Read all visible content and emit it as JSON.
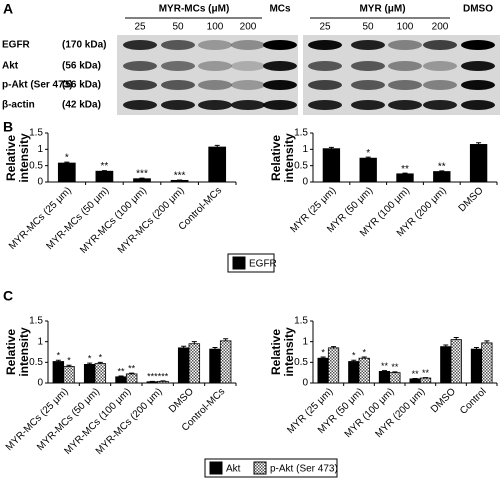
{
  "panel_labels": [
    "A",
    "B",
    "C"
  ],
  "panel_a": {
    "groups": [
      {
        "title": "MYR-MCs (μM)",
        "doses": [
          "25",
          "50",
          "100",
          "200"
        ]
      },
      {
        "title": "MCs"
      },
      {
        "title": "MYR (μM)",
        "doses": [
          "25",
          "50",
          "100",
          "200"
        ]
      },
      {
        "title": "DMSO"
      }
    ],
    "rows": [
      {
        "protein": "EGFR",
        "size": "(170 kDa)"
      },
      {
        "protein": "Akt",
        "size": "(56 kDa)"
      },
      {
        "protein": "p-Akt (Ser 473)",
        "size": "(56 kDa)"
      },
      {
        "protein": "β-actin",
        "size": "(42 kDa)"
      }
    ]
  },
  "chart_data": [
    {
      "type": "bar",
      "ylabel": "Relative intensity",
      "categories": [
        "MYR-MCs (25 μm)",
        "MYR-MCs (50 μm)",
        "MYR-MCs (100 μm)",
        "MYR-MCs (200 μm)",
        "Control-MCs"
      ],
      "series": [
        {
          "name": "EGFR",
          "color": "#000000",
          "values": [
            0.58,
            0.33,
            0.1,
            0.05,
            1.07
          ],
          "errors": [
            0.03,
            0.02,
            0.02,
            0.01,
            0.05
          ],
          "labels": [
            "*",
            "**",
            "***",
            "***",
            null
          ]
        }
      ],
      "ylim": [
        0,
        1.5
      ],
      "yticks": [
        0,
        0.5,
        1,
        1.5
      ]
    },
    {
      "type": "bar",
      "ylabel": "Relative intensity",
      "categories": [
        "MYR (25 μm)",
        "MYR (50 μm)",
        "MYR (100 μm)",
        "MYR (200 μm)",
        "DMSO"
      ],
      "series": [
        {
          "color": "#000000",
          "values": [
            1.02,
            0.73,
            0.25,
            0.32,
            1.15
          ],
          "errors": [
            0.04,
            0.03,
            0.02,
            0.02,
            0.05
          ],
          "labels": [
            null,
            "*",
            "**",
            "**",
            null
          ]
        }
      ],
      "ylim": [
        0,
        1.5
      ],
      "yticks": [
        0,
        0.5,
        1,
        1.5
      ]
    },
    {
      "type": "bar",
      "ylabel": "Relative intensity",
      "categories": [
        "MYR-MCs (25 μm)",
        "MYR-MCs (50 μm)",
        "MYR-MCs (100 μm)",
        "MYR-MCs (200 μm)",
        "DMSO",
        "Control-MCs"
      ],
      "series": [
        {
          "name": "Akt",
          "color": "#000000",
          "values": [
            0.52,
            0.45,
            0.15,
            0.03,
            0.85,
            0.82
          ],
          "errors": [
            0.03,
            0.03,
            0.02,
            0.01,
            0.04,
            0.04
          ],
          "labels": [
            "*",
            "*",
            "**",
            "***",
            null,
            null
          ]
        },
        {
          "name": "p-Akt (Ser 473)",
          "color": "#ffffff",
          "pattern": "checker",
          "values": [
            0.4,
            0.47,
            0.22,
            0.04,
            0.95,
            1.02
          ],
          "errors": [
            0.03,
            0.03,
            0.02,
            0.01,
            0.05,
            0.05
          ],
          "labels": [
            "*",
            "*",
            "**",
            "***",
            null,
            null
          ]
        }
      ],
      "ylim": [
        0,
        1.5
      ],
      "yticks": [
        0,
        0.5,
        1,
        1.5
      ]
    },
    {
      "type": "bar",
      "ylabel": "Relative intensity",
      "categories": [
        "MYR (25 μm)",
        "MYR (50 μm)",
        "MYR (100 μm)",
        "MYR (200 μm)",
        "DMSO",
        "Control"
      ],
      "series": [
        {
          "color": "#000000",
          "values": [
            0.6,
            0.52,
            0.28,
            0.1,
            0.88,
            0.82
          ],
          "errors": [
            0.03,
            0.03,
            0.02,
            0.01,
            0.04,
            0.04
          ],
          "labels": [
            "*",
            "*",
            "**",
            "**",
            null,
            null
          ]
        },
        {
          "color": "#ffffff",
          "pattern": "checker",
          "values": [
            0.85,
            0.6,
            0.25,
            0.12,
            1.05,
            0.97
          ],
          "errors": [
            0.03,
            0.03,
            0.02,
            0.01,
            0.05,
            0.05
          ],
          "labels": [
            null,
            "*",
            "**",
            "**",
            null,
            null
          ]
        }
      ],
      "ylim": [
        0,
        1.5
      ],
      "yticks": [
        0,
        0.5,
        1,
        1.5
      ]
    }
  ]
}
